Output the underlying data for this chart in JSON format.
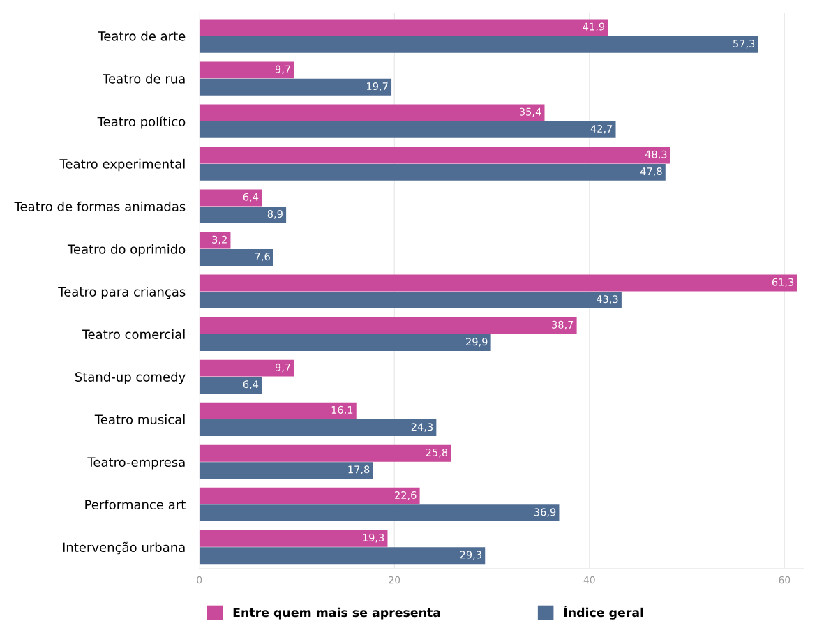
{
  "chart_data": {
    "type": "bar",
    "orientation": "horizontal",
    "categories": [
      "Teatro de arte",
      "Teatro de rua",
      "Teatro político",
      "Teatro experimental",
      "Teatro de formas animadas",
      "Teatro do oprimido",
      "Teatro para crianças",
      "Teatro comercial",
      "Stand-up comedy",
      "Teatro musical",
      "Teatro-empresa",
      "Performance art",
      "Intervenção urbana"
    ],
    "series": [
      {
        "name": "Entre quem mais se apresenta",
        "color": "#c9499a",
        "values": [
          41.9,
          9.7,
          35.4,
          48.3,
          6.4,
          3.2,
          61.3,
          38.7,
          9.7,
          16.1,
          25.8,
          22.6,
          19.3
        ],
        "value_labels": [
          "41,9",
          "9,7",
          "35,4",
          "48,3",
          "6,4",
          "3,2",
          "61,3",
          "38,7",
          "9,7",
          "16,1",
          "25,8",
          "22,6",
          "19,3"
        ]
      },
      {
        "name": "Índice geral",
        "color": "#4f6d93",
        "values": [
          57.3,
          19.7,
          42.7,
          47.8,
          8.9,
          7.6,
          43.3,
          29.9,
          6.4,
          24.3,
          17.8,
          36.9,
          29.3
        ],
        "value_labels": [
          "57,3",
          "19,7",
          "42,7",
          "47,8",
          "8,9",
          "7,6",
          "43,3",
          "29,9",
          "6,4",
          "24,3",
          "17,8",
          "36,9",
          "29,3"
        ]
      }
    ],
    "xlim": [
      0,
      62
    ],
    "xticks": [
      0,
      20,
      40,
      60
    ],
    "grid": "x",
    "legend": "bottom left"
  }
}
